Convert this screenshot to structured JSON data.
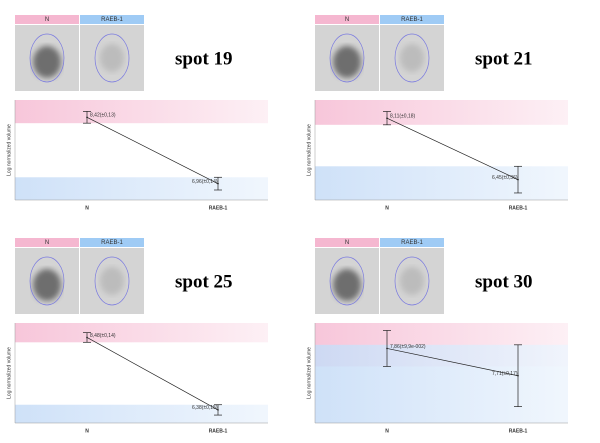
{
  "chart_data": [
    {
      "type": "line",
      "title": "spot 19",
      "image_labels": [
        "N",
        "RAEB-1"
      ],
      "ylabel": "Log normalized volume",
      "categories": [
        "N",
        "RAEB-1"
      ],
      "values": [
        8.42,
        6.96
      ],
      "errors": [
        0.13,
        0.14
      ],
      "value_labels": [
        "8,42(±0,13)",
        "6,96(±0,14)"
      ],
      "ylim": [
        6.6,
        8.8
      ]
    },
    {
      "type": "line",
      "title": "spot 21",
      "image_labels": [
        "N",
        "RAEB-1"
      ],
      "ylabel": "Log normalized volume",
      "categories": [
        "N",
        "RAEB-1"
      ],
      "values": [
        8.11,
        6.45
      ],
      "errors": [
        0.18,
        0.36
      ],
      "value_labels": [
        "8,11(±0,18)",
        "6,45(±0,36)"
      ],
      "ylim": [
        5.9,
        8.6
      ]
    },
    {
      "type": "line",
      "title": "spot 25",
      "image_labels": [
        "N",
        "RAEB-1"
      ],
      "ylabel": "Log normalized volume",
      "categories": [
        "N",
        "RAEB-1"
      ],
      "values": [
        8.48,
        6.38
      ],
      "errors": [
        0.14,
        0.15
      ],
      "value_labels": [
        "8,48(±0,14)",
        "6,38(±0,15)"
      ],
      "ylim": [
        6.0,
        8.9
      ]
    },
    {
      "type": "line",
      "title": "spot 30",
      "image_labels": [
        "N",
        "RAEB-1"
      ],
      "ylabel": "Log normalized volume",
      "categories": [
        "N",
        "RAEB-1"
      ],
      "values": [
        7.86,
        7.71
      ],
      "errors": [
        0.099,
        0.17
      ],
      "value_labels": [
        "7,86(±9,9e-002)",
        "7,71(±0,17)"
      ],
      "ylim": [
        7.45,
        8.0
      ]
    }
  ]
}
